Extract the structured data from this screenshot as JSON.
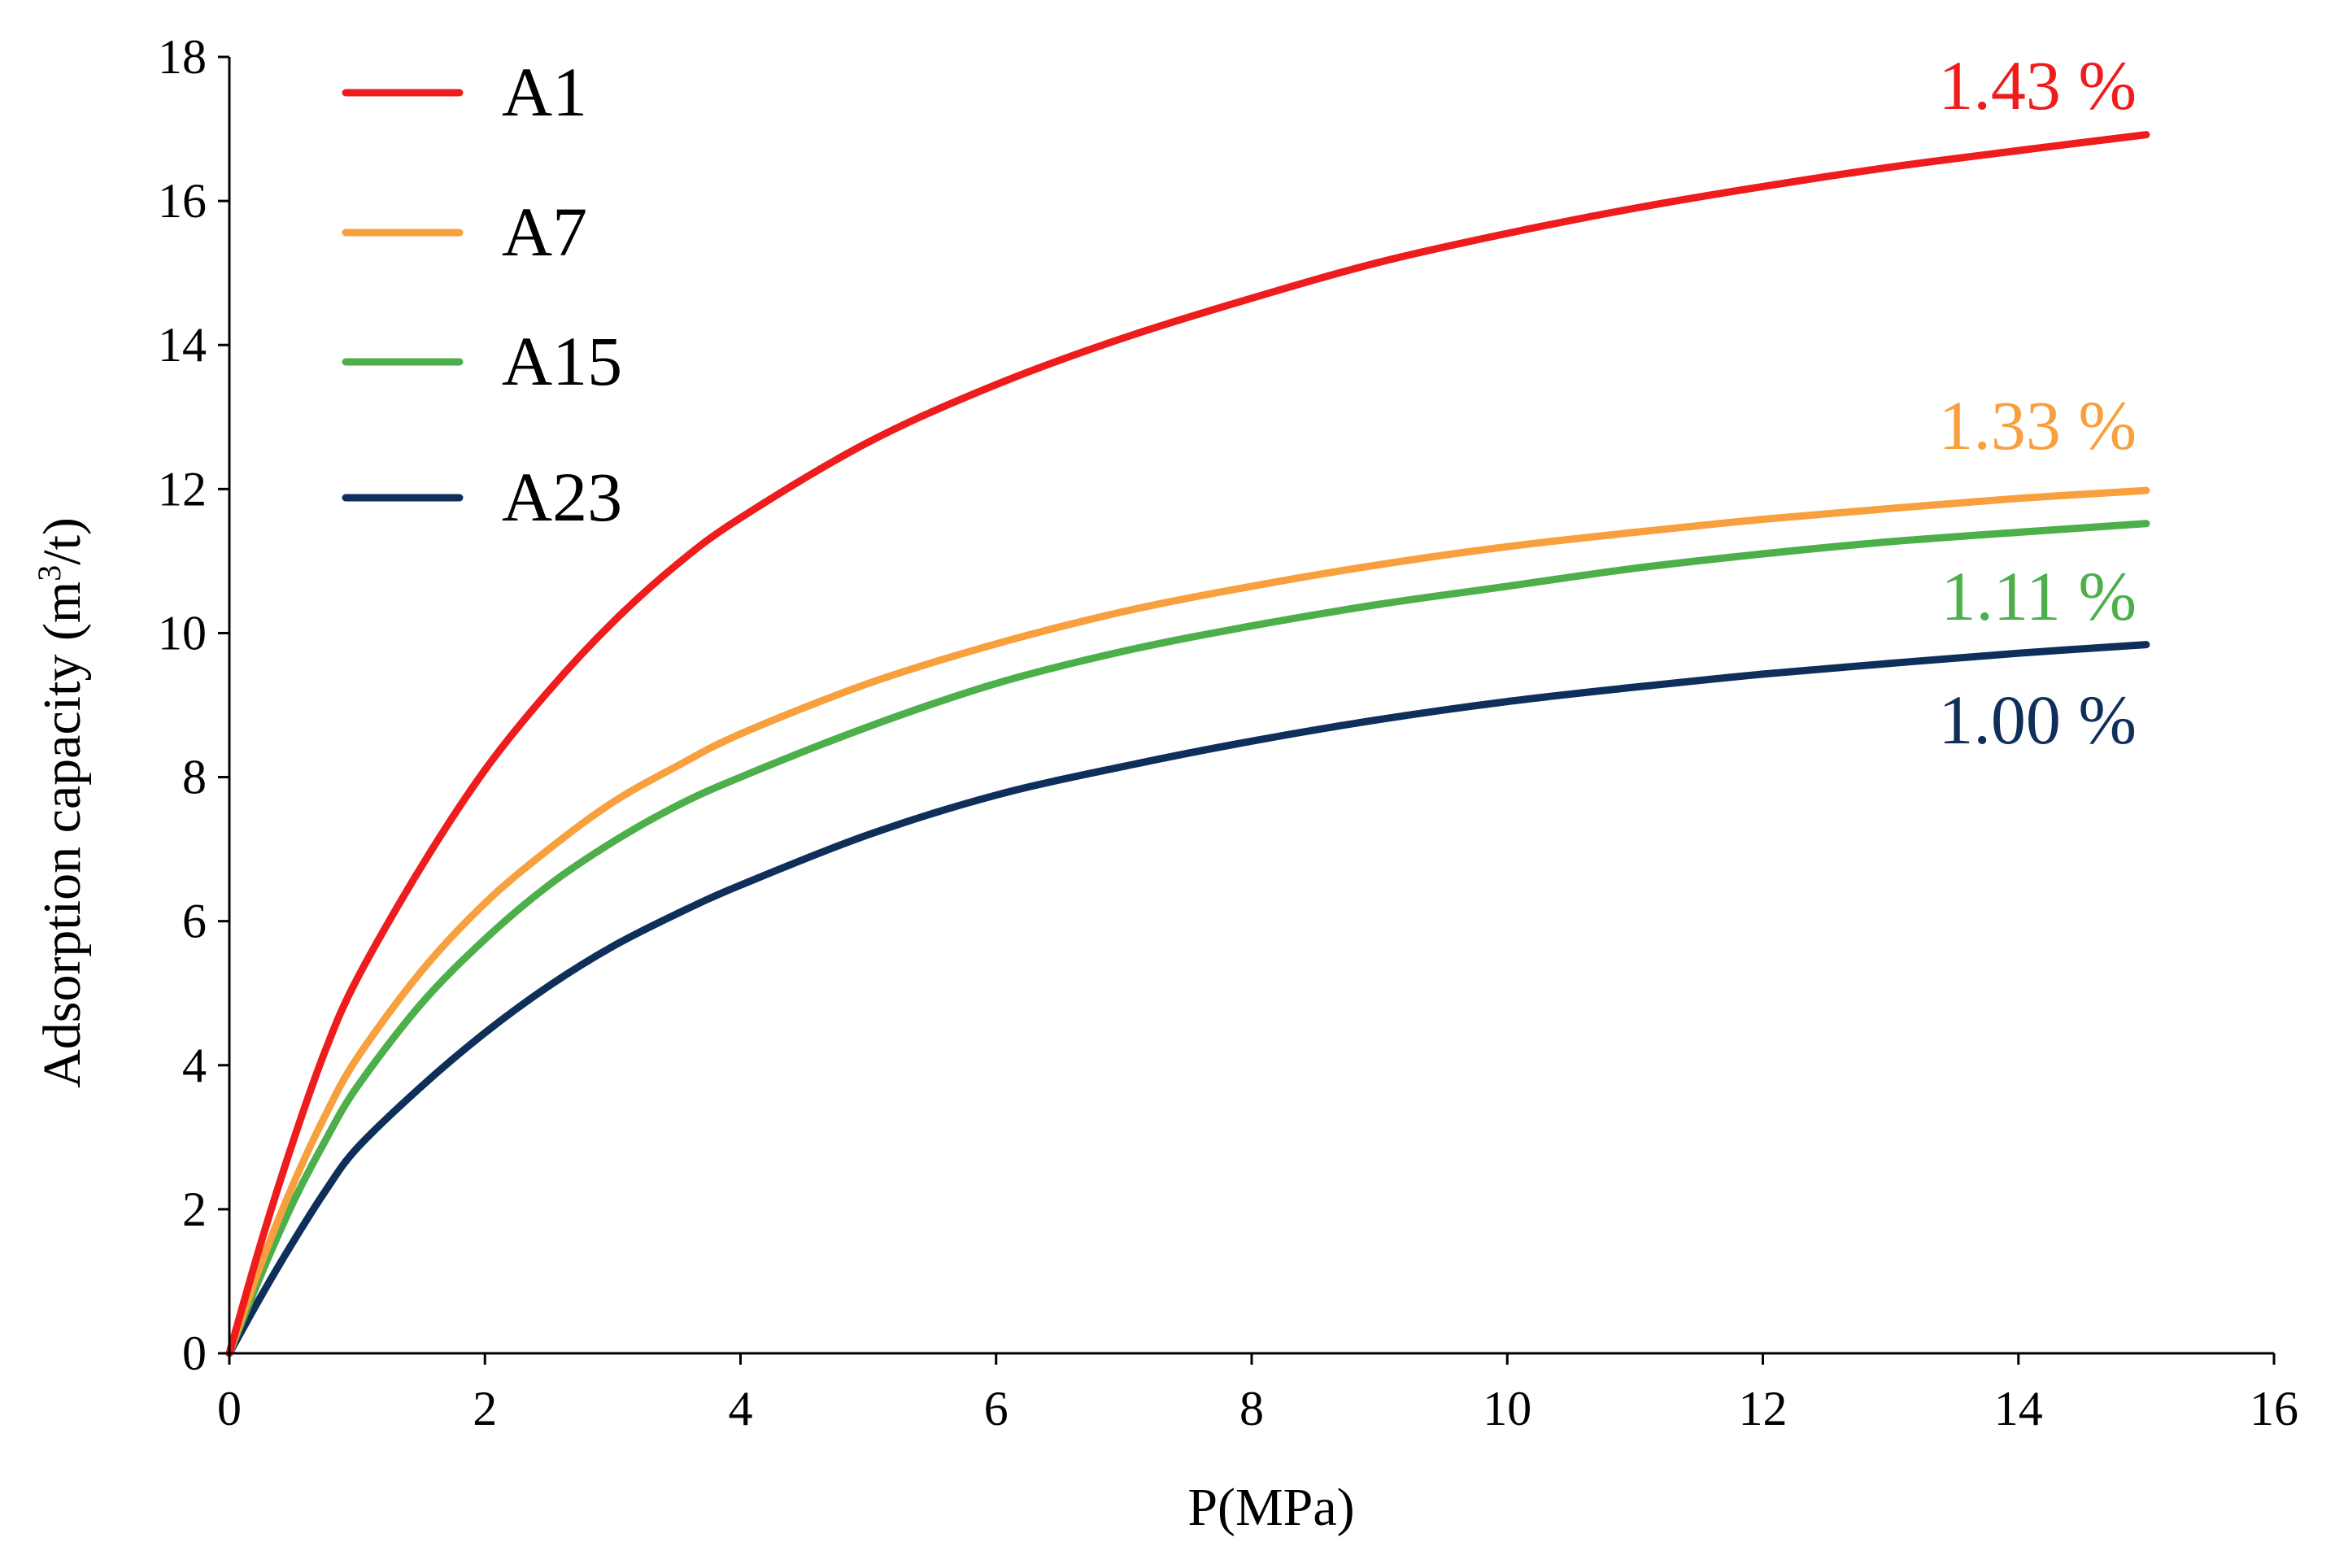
{
  "chart_data": {
    "type": "line",
    "title": "",
    "xlabel": "P(MPa)",
    "ylabel": "Adsorption capacity (m3/t)",
    "ylabel_parts": {
      "text": "Adsorption capacity (m",
      "superscript": "3",
      "tail": "/t)"
    },
    "xlim": [
      0,
      16
    ],
    "ylim": [
      0,
      18
    ],
    "xticks": [
      0,
      2,
      4,
      6,
      8,
      10,
      12,
      14,
      16
    ],
    "yticks": [
      0,
      2,
      4,
      6,
      8,
      10,
      12,
      14,
      16,
      18
    ],
    "grid": false,
    "legend_position": "top-left",
    "x": [
      0,
      0.25,
      0.5,
      0.75,
      1,
      1.5,
      2,
      2.5,
      3,
      3.5,
      4,
      5,
      6,
      7,
      8,
      9,
      10,
      11,
      12,
      13,
      14,
      15
    ],
    "series": [
      {
        "name": "A1",
        "color": "#ee1c1c",
        "annotation": "1.43 %",
        "values": [
          0,
          1.55,
          2.95,
          4.2,
          5.2,
          6.75,
          8.1,
          9.2,
          10.15,
          10.95,
          11.6,
          12.65,
          13.45,
          14.1,
          14.65,
          15.15,
          15.55,
          15.9,
          16.2,
          16.47,
          16.7,
          16.92
        ]
      },
      {
        "name": "A7",
        "color": "#f7a03d",
        "annotation": "1.33 %",
        "values": [
          0,
          1.25,
          2.35,
          3.3,
          4.1,
          5.3,
          6.25,
          7.0,
          7.65,
          8.15,
          8.6,
          9.3,
          9.85,
          10.3,
          10.65,
          10.95,
          11.2,
          11.4,
          11.58,
          11.73,
          11.87,
          11.98
        ]
      },
      {
        "name": "A15",
        "color": "#4caf4a",
        "annotation": "1.11 %",
        "values": [
          0,
          1.1,
          2.1,
          2.95,
          3.7,
          4.85,
          5.75,
          6.5,
          7.1,
          7.6,
          8.0,
          8.7,
          9.3,
          9.75,
          10.1,
          10.4,
          10.65,
          10.9,
          11.1,
          11.27,
          11.4,
          11.52
        ]
      },
      {
        "name": "A23",
        "color": "#0d2f5a",
        "annotation": "1.00 %",
        "values": [
          0,
          0.8,
          1.55,
          2.25,
          2.85,
          3.7,
          4.45,
          5.1,
          5.65,
          6.1,
          6.5,
          7.2,
          7.75,
          8.15,
          8.5,
          8.8,
          9.05,
          9.25,
          9.43,
          9.58,
          9.72,
          9.84
        ]
      }
    ]
  }
}
